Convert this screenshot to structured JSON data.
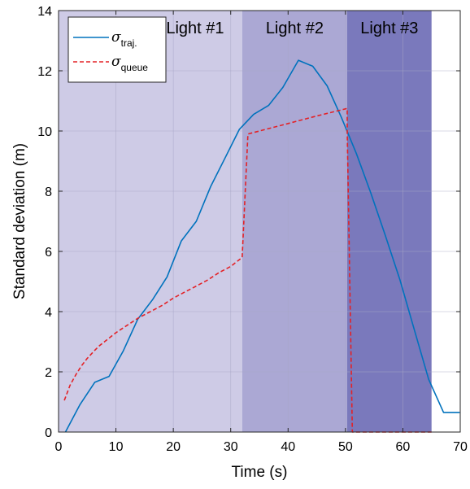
{
  "chart_data": {
    "type": "line",
    "xlabel": "Time (s)",
    "ylabel": "Standard deviation (m)",
    "xlim": [
      0,
      70
    ],
    "ylim": [
      0,
      14
    ],
    "xticks": [
      0,
      10,
      20,
      30,
      40,
      50,
      60,
      70
    ],
    "yticks": [
      0,
      2,
      4,
      6,
      8,
      10,
      12,
      14
    ],
    "grid": true,
    "legend_position": "top-left",
    "regions": [
      {
        "label": "Light #1",
        "x0": 0,
        "x1": 32,
        "color": "#cecbe6"
      },
      {
        "label": "Light #2",
        "x0": 32,
        "x1": 50.3,
        "color": "#aba8d4"
      },
      {
        "label": "Light #3",
        "x0": 50.3,
        "x1": 65,
        "color": "#7a79bc"
      }
    ],
    "series": [
      {
        "name": "traj.",
        "symbol": "σ",
        "subscript": "traj.",
        "color": "#0072bd",
        "style": "solid",
        "x": [
          1.2,
          3.7,
          6.3,
          8.8,
          11.3,
          13.8,
          16.4,
          18.9,
          21.4,
          24,
          26.5,
          29,
          31.5,
          34,
          36.6,
          39.1,
          41.8,
          44.3,
          46.8,
          49.3,
          51.9,
          54.4,
          56.9,
          59.5,
          62,
          64.5,
          67.1,
          69.9
        ],
        "y": [
          0,
          0.9,
          1.65,
          1.85,
          2.7,
          3.75,
          4.4,
          5.15,
          6.35,
          7,
          8.15,
          9.1,
          10.05,
          10.55,
          10.85,
          11.45,
          12.35,
          12.15,
          11.5,
          10.45,
          9.25,
          7.95,
          6.55,
          5.05,
          3.4,
          1.75,
          0.65,
          0.65
        ]
      },
      {
        "name": "queue",
        "symbol": "σ",
        "subscript": "queue",
        "color": "#e32227",
        "style": "dashed",
        "x": [
          1,
          2,
          3,
          4,
          5,
          6,
          7,
          8,
          10,
          12,
          14,
          16,
          18,
          20,
          22,
          24,
          26,
          28,
          30,
          32,
          33,
          35,
          40,
          45,
          50.3,
          50.3,
          51.2,
          55,
          60,
          65
        ],
        "y": [
          1.05,
          1.55,
          1.9,
          2.2,
          2.45,
          2.65,
          2.85,
          3.0,
          3.3,
          3.55,
          3.8,
          4.0,
          4.2,
          4.45,
          4.65,
          4.85,
          5.05,
          5.3,
          5.5,
          5.8,
          9.9,
          10.0,
          10.25,
          10.5,
          10.75,
          10.0,
          0,
          0,
          0,
          0
        ]
      }
    ]
  }
}
